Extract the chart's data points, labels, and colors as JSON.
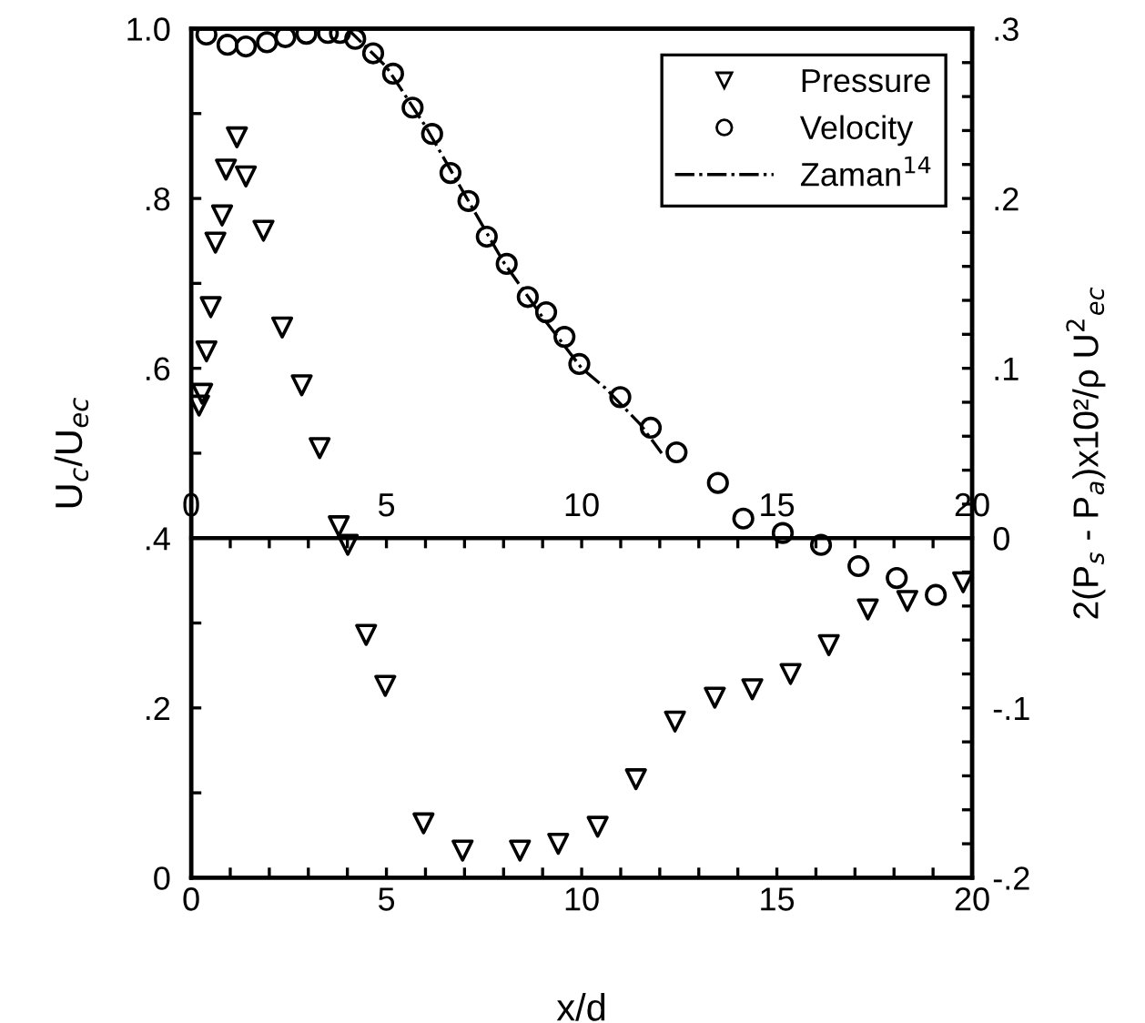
{
  "chart_data": {
    "type": "scatter",
    "xlabel": "x/d",
    "ylabel": "U$_{c}$/U$_{ec}$",
    "y2label": "2(P$_{s}$ - P$_{a}$)x10²/ρ U$^{2}$$_{ec}$",
    "xlim": [
      0,
      20
    ],
    "ylim": [
      0,
      1.0
    ],
    "y2lim": [
      -0.2,
      0.3
    ],
    "x2lim": [
      0,
      20
    ],
    "xticks": [
      0,
      {
        "value": 1,
        "label": null
      },
      {
        "value": 2,
        "label": null
      },
      {
        "value": 3,
        "label": null
      },
      {
        "value": 4,
        "label": null
      },
      5,
      {
        "value": 6,
        "label": null
      },
      {
        "value": 7,
        "label": null
      },
      {
        "value": 8,
        "label": null
      },
      {
        "value": 9,
        "label": null
      },
      10,
      {
        "value": 11,
        "label": null
      },
      {
        "value": 12,
        "label": null
      },
      {
        "value": 13,
        "label": null
      },
      {
        "value": 14,
        "label": null
      },
      15,
      {
        "value": 16,
        "label": null
      },
      {
        "value": 17,
        "label": null
      },
      {
        "value": 18,
        "label": null
      },
      {
        "value": 19,
        "label": null
      },
      20
    ],
    "x2ticks": [
      0,
      {
        "value": 1,
        "label": null
      },
      {
        "value": 2,
        "label": null
      },
      {
        "value": 3,
        "label": null
      },
      {
        "value": 4,
        "label": null
      },
      5,
      {
        "value": 6,
        "label": null
      },
      {
        "value": 7,
        "label": null
      },
      {
        "value": 8,
        "label": null
      },
      {
        "value": 9,
        "label": null
      },
      10,
      {
        "value": 11,
        "label": null
      },
      {
        "value": 12,
        "label": null
      },
      {
        "value": 13,
        "label": null
      },
      {
        "value": 14,
        "label": null
      },
      15,
      {
        "value": 16,
        "label": null
      },
      {
        "value": 17,
        "label": null
      },
      {
        "value": 18,
        "label": null
      },
      {
        "value": 19,
        "label": null
      },
      20
    ],
    "yticks": [
      0,
      {
        "value": 0.1,
        "label": null
      },
      {
        "value": 0.2,
        "label": ".2"
      },
      {
        "value": 0.3,
        "label": null
      },
      {
        "value": 0.4,
        "label": ".4"
      },
      {
        "value": 0.5,
        "label": null
      },
      {
        "value": 0.6,
        "label": ".6"
      },
      {
        "value": 0.7,
        "label": null
      },
      {
        "value": 0.8,
        "label": ".8"
      },
      {
        "value": 0.9,
        "label": null
      },
      {
        "value": 1.0,
        "label": "1.0"
      }
    ],
    "y2ticks": [
      {
        "value": -0.2,
        "label": "-.2"
      },
      {
        "value": -0.18,
        "label": null
      },
      {
        "value": -0.16,
        "label": null
      },
      {
        "value": -0.14,
        "label": null
      },
      {
        "value": -0.12,
        "label": null
      },
      {
        "value": -0.1,
        "label": "-.1"
      },
      {
        "value": -0.08,
        "label": null
      },
      {
        "value": -0.06,
        "label": null
      },
      {
        "value": -0.04,
        "label": null
      },
      {
        "value": -0.02,
        "label": null
      },
      0,
      {
        "value": 0.02,
        "label": null
      },
      {
        "value": 0.04,
        "label": null
      },
      {
        "value": 0.06,
        "label": null
      },
      {
        "value": 0.08,
        "label": null
      },
      {
        "value": 0.1,
        "label": ".1"
      },
      {
        "value": 0.12,
        "label": null
      },
      {
        "value": 0.14,
        "label": null
      },
      {
        "value": 0.16,
        "label": null
      },
      {
        "value": 0.18,
        "label": null
      },
      {
        "value": 0.2,
        "label": ".2"
      },
      {
        "value": 0.22,
        "label": null
      },
      {
        "value": 0.24,
        "label": null
      },
      {
        "value": 0.26,
        "label": null
      },
      {
        "value": 0.28,
        "label": null
      },
      {
        "value": 0.3,
        "label": ".3"
      }
    ],
    "grid": false,
    "legend": "top right",
    "series": [
      {
        "name": "Pressure",
        "axis": "y2",
        "marker": "triangle",
        "color": "#000000",
        "x": [
          0.2,
          0.28,
          0.39,
          0.5,
          0.62,
          0.79,
          0.89,
          1.17,
          1.4,
          1.85,
          2.33,
          2.83,
          3.29,
          3.78,
          4.01,
          4.48,
          4.97,
          5.95,
          6.95,
          8.42,
          9.4,
          10.41,
          11.39,
          12.39,
          13.41,
          14.37,
          15.35,
          16.33,
          17.33,
          18.34,
          19.77
        ],
        "values": [
          0.078,
          0.085,
          0.11,
          0.136,
          0.174,
          0.19,
          0.217,
          0.236,
          0.213,
          0.181,
          0.124,
          0.09,
          0.053,
          0.007,
          -0.004,
          -0.057,
          -0.087,
          -0.168,
          -0.184,
          -0.184,
          -0.18,
          -0.17,
          -0.142,
          -0.108,
          -0.094,
          -0.089,
          -0.08,
          -0.063,
          -0.042,
          -0.037,
          -0.026
        ]
      },
      {
        "name": "Velocity",
        "marker": "circle",
        "color": "#000000",
        "x": [
          0.39,
          0.93,
          1.4,
          1.94,
          2.41,
          2.95,
          3.5,
          3.81,
          4.2,
          4.66,
          5.17,
          5.67,
          6.17,
          6.64,
          7.1,
          7.57,
          8.08,
          8.62,
          9.09,
          9.56,
          9.94,
          10.99,
          11.77,
          12.43,
          13.49,
          14.14,
          15.15,
          16.13,
          17.09,
          18.07,
          19.07
        ],
        "values": [
          0.993,
          0.981,
          0.979,
          0.984,
          0.99,
          0.994,
          0.995,
          0.995,
          0.988,
          0.971,
          0.947,
          0.907,
          0.876,
          0.83,
          0.797,
          0.755,
          0.723,
          0.684,
          0.666,
          0.637,
          0.605,
          0.566,
          0.53,
          0.501,
          0.465,
          0.423,
          0.406,
          0.392,
          0.367,
          0.353,
          0.333
        ]
      },
      {
        "name": "Zaman$^{14}$",
        "type": "line",
        "marker": "none",
        "line_style": "dashdot",
        "color": "#000000",
        "x": [
          4.0,
          5.0,
          6.0,
          7.0,
          8.0,
          9.0,
          10.0,
          10.6,
          11.5,
          12.05
        ],
        "values": [
          1.0,
          0.955,
          0.885,
          0.805,
          0.725,
          0.66,
          0.6,
          0.577,
          0.534,
          0.5
        ]
      }
    ]
  }
}
